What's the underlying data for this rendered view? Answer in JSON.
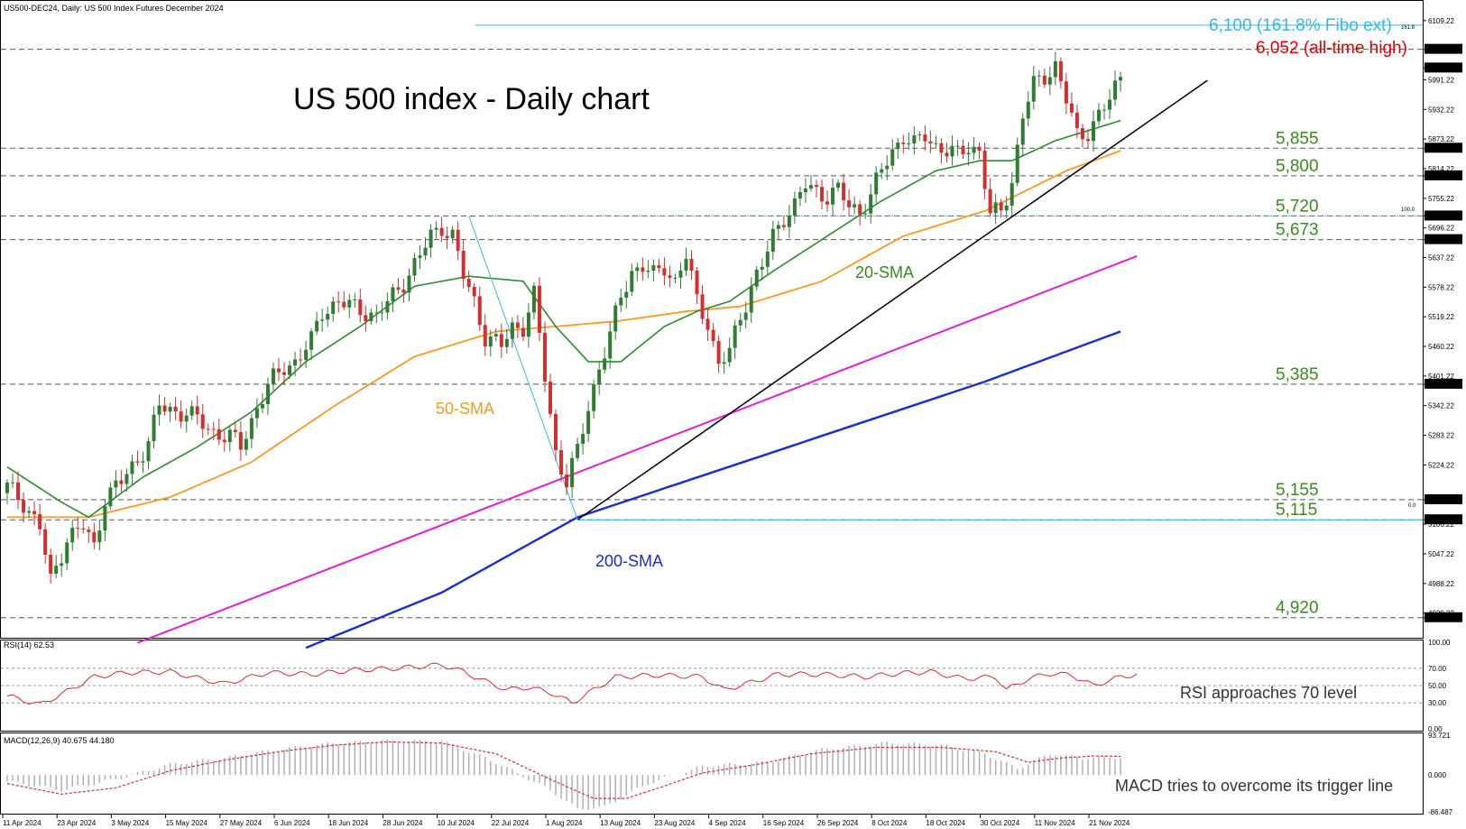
{
  "header": {
    "main": "US500-DEC24, Daily:  US 500 Index Futures December 2024",
    "rsi": "RSI(14) 62.53",
    "macd": "MACD(12,26,9) 40.675 44.180"
  },
  "title": "US 500 index - Daily chart",
  "colors": {
    "up": "#2e7d32",
    "down": "#d32f2f",
    "sma20": "#2e8b2e",
    "sma50": "#f59a23",
    "sma200": "#1a2ecc",
    "magenta": "#e020d0",
    "trend": "#000000",
    "fibo": "#35b6e8",
    "level_text": "#3a8a1e",
    "ath": "#e00000",
    "grid": "#555555"
  },
  "annotations": {
    "fibo_ext": "6,100 (161.8% Fibo ext)",
    "ath": "6,052 (all-time high)",
    "sma20": "20-SMA",
    "sma50": "50-SMA",
    "sma200": "200-SMA",
    "rsi_note": "RSI approaches 70 level",
    "macd_note": "MACD tries to overcome its trigger line",
    "fib_161": "161.8",
    "fib_100": "100.0",
    "fib_0": "0.0"
  },
  "chart_data": {
    "type": "candlestick",
    "symbol": "US500-DEC24",
    "timeframe": "Daily",
    "ylim": [
      4880,
      6125
    ],
    "price_ticks": [
      "6109.22",
      "6052.00",
      "6014.73",
      "5991.22",
      "5932.22",
      "5873.22",
      "5855.00",
      "5814.22",
      "5800.00",
      "5755.22",
      "5720.00",
      "5696.22",
      "5673.00",
      "5637.22",
      "5578.22",
      "5519.22",
      "5460.22",
      "5401.22",
      "5385.00",
      "5342.22",
      "5283.22",
      "5224.22",
      "5155.00",
      "5106.22",
      "5115.00",
      "5047.22",
      "4988.22",
      "4929.22",
      "4920.00"
    ],
    "highlighted_ticks": [
      "6052.00",
      "6014.73",
      "5855.00",
      "5800.00",
      "5720.00",
      "5673.00",
      "5385.00",
      "5155.00",
      "5115.00",
      "4920.00"
    ],
    "x_labels": [
      "11 Apr 2024",
      "23 Apr 2024",
      "3 May 2024",
      "15 May 2024",
      "27 May 2024",
      "6 Jun 2024",
      "18 Jun 2024",
      "28 Jun 2024",
      "10 Jul 2024",
      "22 Jul 2024",
      "1 Aug 2024",
      "13 Aug 2024",
      "23 Aug 2024",
      "4 Sep 2024",
      "16 Sep 2024",
      "26 Sep 2024",
      "8 Oct 2024",
      "18 Oct 2024",
      "30 Oct 2024",
      "11 Nov 2024",
      "21 Nov 2024"
    ],
    "close_anchors": [
      [
        0,
        5180
      ],
      [
        3,
        5150
      ],
      [
        6,
        5100
      ],
      [
        8,
        4990
      ],
      [
        11,
        5080
      ],
      [
        14,
        5100
      ],
      [
        16,
        5060
      ],
      [
        18,
        5160
      ],
      [
        21,
        5190
      ],
      [
        23,
        5220
      ],
      [
        26,
        5270
      ],
      [
        28,
        5340
      ],
      [
        31,
        5330
      ],
      [
        33,
        5330
      ],
      [
        36,
        5305
      ],
      [
        38,
        5290
      ],
      [
        41,
        5280
      ],
      [
        43,
        5260
      ],
      [
        46,
        5340
      ],
      [
        48,
        5380
      ],
      [
        51,
        5420
      ],
      [
        53,
        5430
      ],
      [
        56,
        5470
      ],
      [
        58,
        5530
      ],
      [
        61,
        5550
      ],
      [
        63,
        5540
      ],
      [
        66,
        5530
      ],
      [
        68,
        5520
      ],
      [
        71,
        5560
      ],
      [
        73,
        5590
      ],
      [
        76,
        5640
      ],
      [
        78,
        5680
      ],
      [
        80,
        5700
      ],
      [
        82,
        5680
      ],
      [
        84,
        5600
      ],
      [
        86,
        5550
      ],
      [
        88,
        5480
      ],
      [
        91,
        5460
      ],
      [
        93,
        5500
      ],
      [
        95,
        5500
      ],
      [
        97,
        5560
      ],
      [
        99,
        5400
      ],
      [
        101,
        5250
      ],
      [
        103,
        5190
      ],
      [
        105,
        5250
      ],
      [
        107,
        5340
      ],
      [
        109,
        5420
      ],
      [
        111,
        5480
      ],
      [
        113,
        5560
      ],
      [
        115,
        5610
      ],
      [
        117,
        5620
      ],
      [
        119,
        5600
      ],
      [
        121,
        5620
      ],
      [
        123,
        5590
      ],
      [
        125,
        5640
      ],
      [
        127,
        5550
      ],
      [
        129,
        5510
      ],
      [
        131,
        5420
      ],
      [
        133,
        5450
      ],
      [
        135,
        5520
      ],
      [
        137,
        5580
      ],
      [
        139,
        5620
      ],
      [
        141,
        5680
      ],
      [
        143,
        5720
      ],
      [
        145,
        5740
      ],
      [
        147,
        5780
      ],
      [
        149,
        5770
      ],
      [
        151,
        5760
      ],
      [
        153,
        5770
      ],
      [
        155,
        5740
      ],
      [
        157,
        5730
      ],
      [
        159,
        5760
      ],
      [
        161,
        5810
      ],
      [
        163,
        5850
      ],
      [
        165,
        5880
      ],
      [
        167,
        5860
      ],
      [
        169,
        5880
      ],
      [
        171,
        5860
      ],
      [
        173,
        5850
      ],
      [
        175,
        5840
      ],
      [
        177,
        5860
      ],
      [
        179,
        5850
      ],
      [
        181,
        5720
      ],
      [
        183,
        5730
      ],
      [
        185,
        5790
      ],
      [
        187,
        5920
      ],
      [
        189,
        5980
      ],
      [
        191,
        6000
      ],
      [
        193,
        6020
      ],
      [
        195,
        5950
      ],
      [
        197,
        5880
      ],
      [
        199,
        5890
      ],
      [
        201,
        5920
      ],
      [
        203,
        5950
      ],
      [
        205,
        6000
      ]
    ],
    "ohlc_note": "candles generated from close anchors (approximate)",
    "sma20_anchors": [
      [
        0,
        5220
      ],
      [
        10,
        5150
      ],
      [
        15,
        5120
      ],
      [
        25,
        5200
      ],
      [
        35,
        5260
      ],
      [
        45,
        5330
      ],
      [
        55,
        5430
      ],
      [
        65,
        5500
      ],
      [
        75,
        5580
      ],
      [
        85,
        5600
      ],
      [
        95,
        5590
      ],
      [
        101,
        5500
      ],
      [
        107,
        5430
      ],
      [
        113,
        5430
      ],
      [
        121,
        5500
      ],
      [
        127,
        5530
      ],
      [
        133,
        5550
      ],
      [
        141,
        5610
      ],
      [
        151,
        5680
      ],
      [
        161,
        5750
      ],
      [
        171,
        5810
      ],
      [
        179,
        5830
      ],
      [
        185,
        5830
      ],
      [
        193,
        5870
      ],
      [
        199,
        5890
      ],
      [
        205,
        5910
      ]
    ],
    "sma50_anchors": [
      [
        0,
        5120
      ],
      [
        15,
        5120
      ],
      [
        30,
        5160
      ],
      [
        45,
        5230
      ],
      [
        60,
        5340
      ],
      [
        75,
        5440
      ],
      [
        90,
        5490
      ],
      [
        101,
        5500
      ],
      [
        112,
        5510
      ],
      [
        125,
        5530
      ],
      [
        135,
        5540
      ],
      [
        150,
        5590
      ],
      [
        165,
        5680
      ],
      [
        180,
        5730
      ],
      [
        195,
        5810
      ],
      [
        205,
        5850
      ]
    ],
    "sma200_anchors": [
      [
        55,
        4860
      ],
      [
        80,
        4970
      ],
      [
        105,
        5120
      ],
      [
        130,
        5210
      ],
      [
        155,
        5300
      ],
      [
        180,
        5390
      ],
      [
        205,
        5490
      ]
    ],
    "magenta_line": [
      [
        24,
        4870
      ],
      [
        208,
        5640
      ]
    ],
    "trendline": [
      [
        105,
        5115
      ],
      [
        221,
        5990
      ]
    ],
    "fibo_line": [
      [
        105,
        5115
      ],
      [
        85,
        5720
      ]
    ],
    "levels": [
      {
        "price": 6052,
        "label": "6,052 (all-time high)"
      },
      {
        "price": 5855,
        "label": "5,855"
      },
      {
        "price": 5800,
        "label": "5,800"
      },
      {
        "price": 5720,
        "label": "5,720"
      },
      {
        "price": 5673,
        "label": "5,673"
      },
      {
        "price": 5385,
        "label": "5,385"
      },
      {
        "price": 5155,
        "label": "5,155"
      },
      {
        "price": 5115,
        "label": "5,115"
      },
      {
        "price": 4920,
        "label": "4,920"
      }
    ],
    "fibo_ext": {
      "price": 6100,
      "label": "6,100 (161.8% Fibo ext)"
    },
    "rsi": {
      "ticks": [
        "100.00",
        "70.00",
        "50.00",
        "30.00",
        "0.00"
      ],
      "anchors": [
        [
          0,
          38
        ],
        [
          6,
          28
        ],
        [
          10,
          40
        ],
        [
          16,
          60
        ],
        [
          22,
          65
        ],
        [
          30,
          66
        ],
        [
          34,
          60
        ],
        [
          40,
          52
        ],
        [
          48,
          65
        ],
        [
          56,
          63
        ],
        [
          64,
          68
        ],
        [
          72,
          70
        ],
        [
          80,
          74
        ],
        [
          84,
          66
        ],
        [
          88,
          55
        ],
        [
          92,
          45
        ],
        [
          96,
          48
        ],
        [
          100,
          42
        ],
        [
          104,
          30
        ],
        [
          108,
          45
        ],
        [
          112,
          60
        ],
        [
          120,
          62
        ],
        [
          128,
          60
        ],
        [
          132,
          45
        ],
        [
          136,
          52
        ],
        [
          142,
          63
        ],
        [
          150,
          63
        ],
        [
          158,
          60
        ],
        [
          164,
          64
        ],
        [
          170,
          66
        ],
        [
          176,
          58
        ],
        [
          182,
          60
        ],
        [
          184,
          45
        ],
        [
          188,
          58
        ],
        [
          192,
          64
        ],
        [
          196,
          62
        ],
        [
          200,
          50
        ],
        [
          205,
          60
        ],
        [
          208,
          63
        ]
      ]
    },
    "macd": {
      "ticks": [
        "93.721",
        "0.000",
        "-86.487"
      ],
      "hist_anchors": [
        [
          0,
          -15
        ],
        [
          10,
          -35
        ],
        [
          20,
          -10
        ],
        [
          30,
          25
        ],
        [
          40,
          40
        ],
        [
          50,
          60
        ],
        [
          60,
          75
        ],
        [
          70,
          80
        ],
        [
          80,
          80
        ],
        [
          90,
          30
        ],
        [
          100,
          -35
        ],
        [
          105,
          -80
        ],
        [
          110,
          -75
        ],
        [
          118,
          -20
        ],
        [
          128,
          20
        ],
        [
          140,
          30
        ],
        [
          150,
          60
        ],
        [
          162,
          75
        ],
        [
          172,
          70
        ],
        [
          180,
          50
        ],
        [
          186,
          15
        ],
        [
          192,
          50
        ],
        [
          198,
          40
        ],
        [
          205,
          42
        ]
      ],
      "signal_anchors": [
        [
          0,
          -20
        ],
        [
          10,
          -45
        ],
        [
          20,
          -30
        ],
        [
          30,
          10
        ],
        [
          40,
          35
        ],
        [
          50,
          55
        ],
        [
          60,
          70
        ],
        [
          70,
          78
        ],
        [
          80,
          75
        ],
        [
          90,
          50
        ],
        [
          100,
          -10
        ],
        [
          108,
          -55
        ],
        [
          114,
          -55
        ],
        [
          120,
          -30
        ],
        [
          128,
          5
        ],
        [
          138,
          25
        ],
        [
          148,
          50
        ],
        [
          160,
          65
        ],
        [
          172,
          65
        ],
        [
          182,
          55
        ],
        [
          188,
          30
        ],
        [
          194,
          40
        ],
        [
          200,
          45
        ],
        [
          205,
          44
        ]
      ]
    }
  }
}
